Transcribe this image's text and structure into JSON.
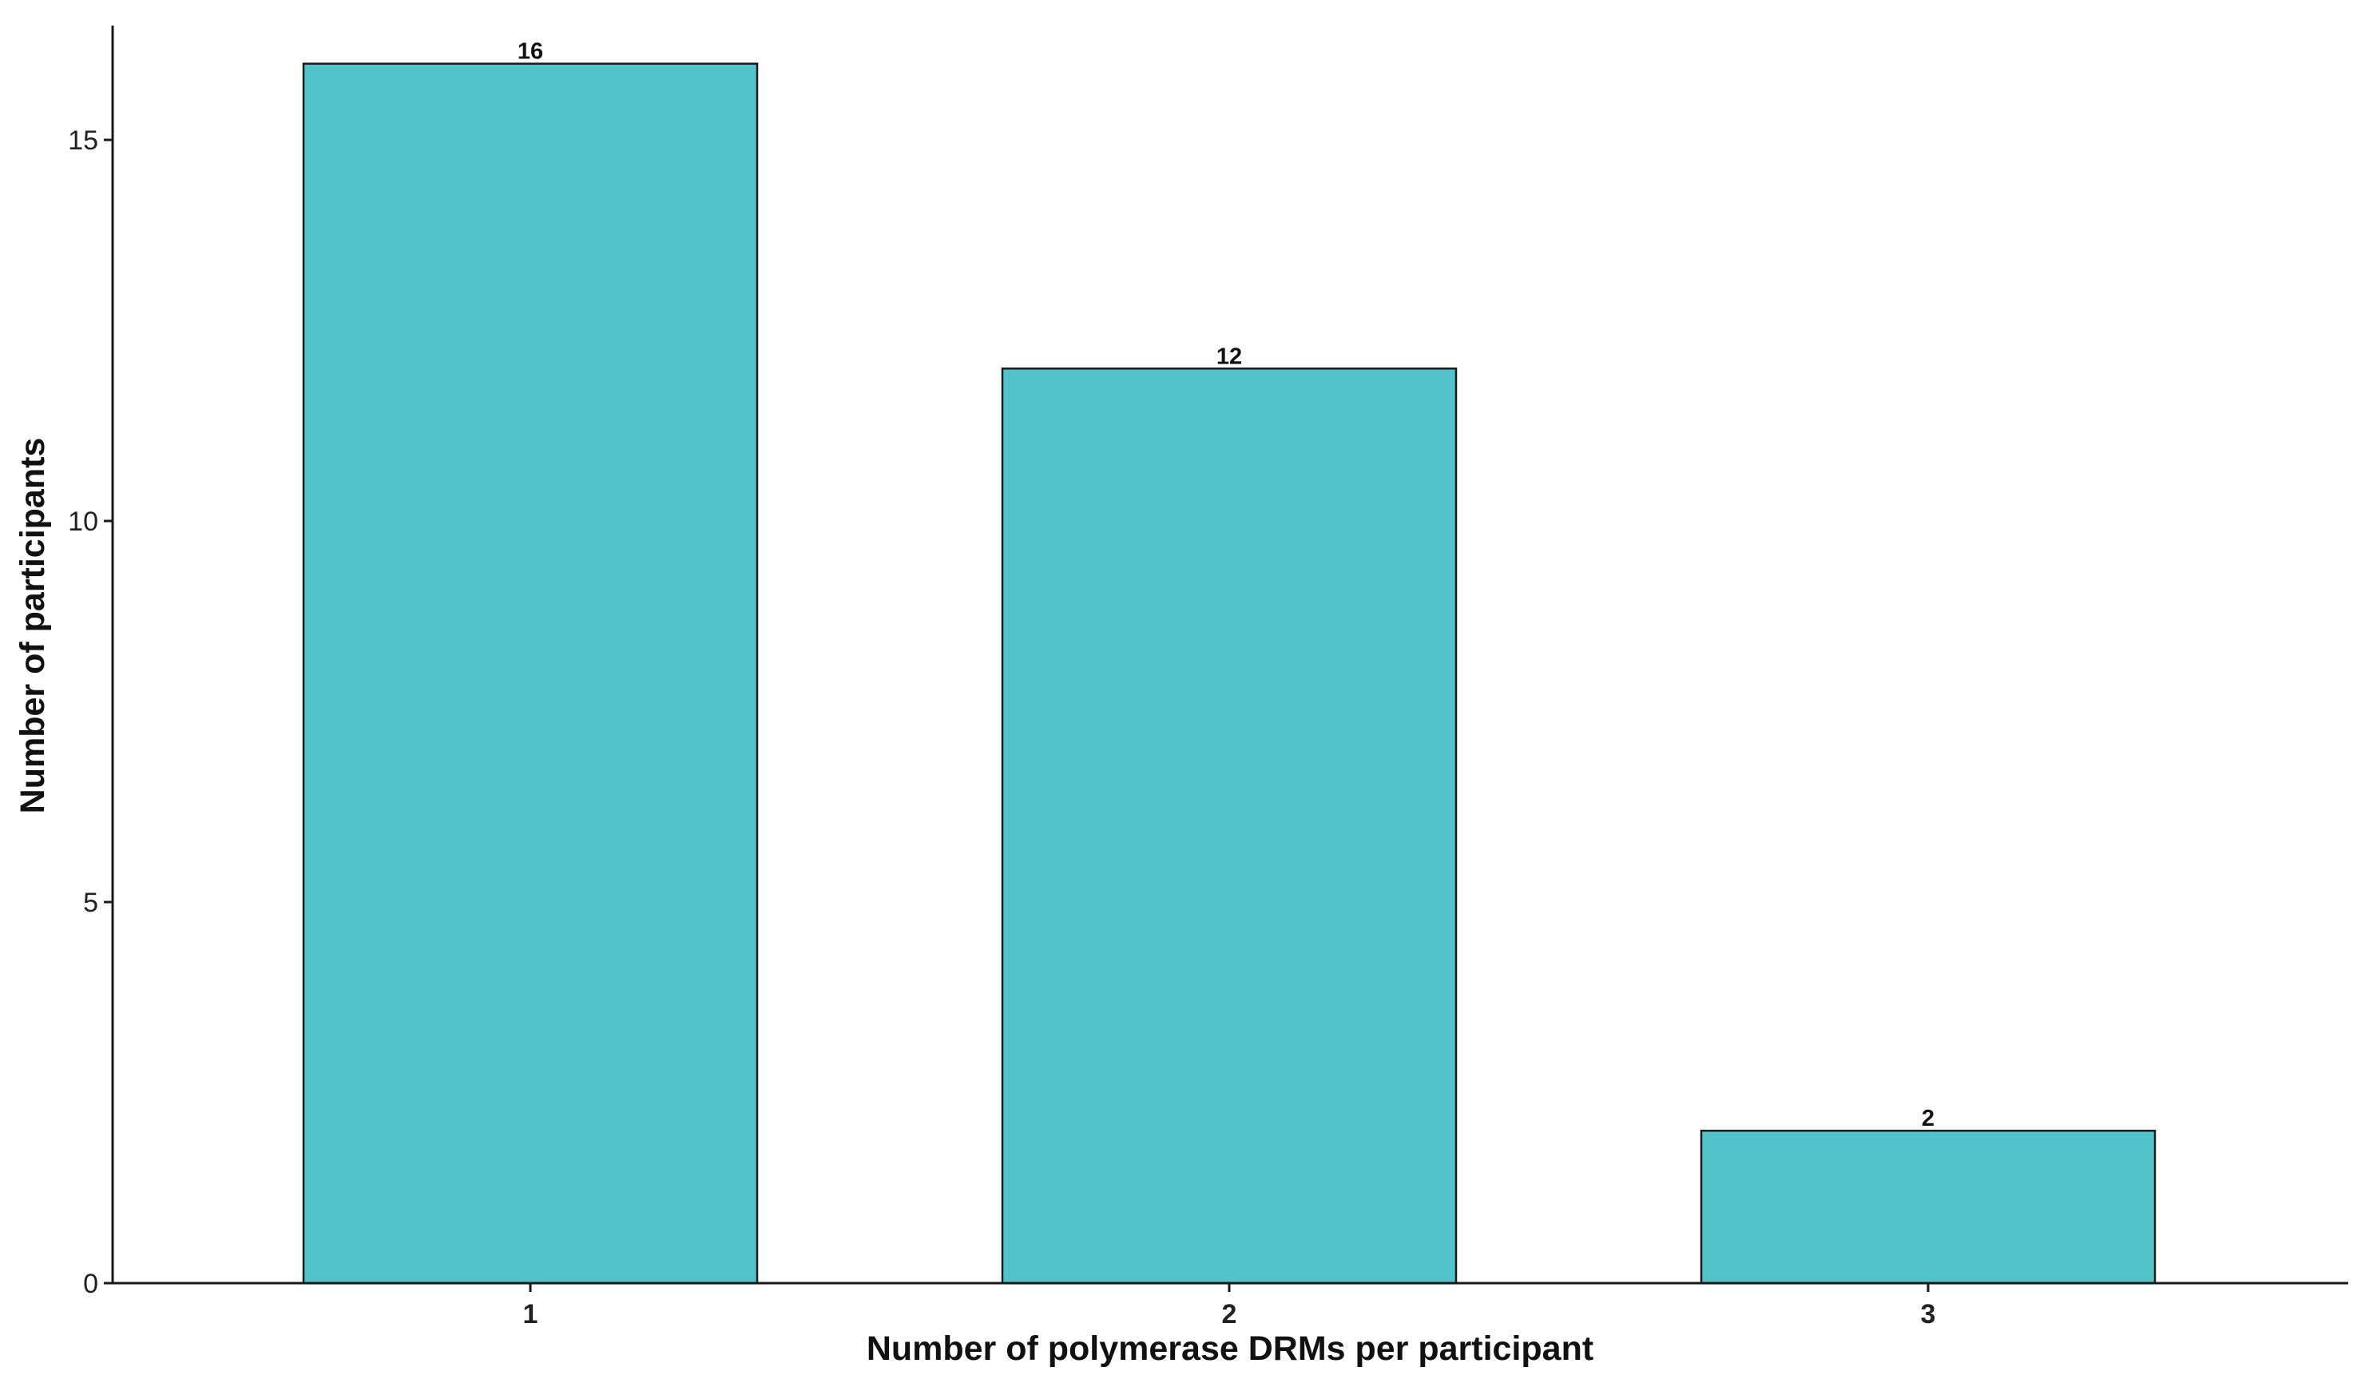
{
  "chart_data": {
    "type": "bar",
    "categories": [
      "1",
      "2",
      "3"
    ],
    "values": [
      16,
      12,
      2
    ],
    "data_labels": [
      "16",
      "12",
      "2"
    ],
    "xlabel": "Number of polymerase DRMs per participant",
    "ylabel": "Number of participants",
    "ylim": [
      0,
      16.5
    ],
    "yticks": [
      0,
      5,
      10,
      15
    ],
    "ytick_labels": [
      "0",
      "5",
      "10",
      "15"
    ],
    "grid": false,
    "legend": "none",
    "colors": {
      "bar_fill": "#52C3C9",
      "bar_stroke": "#1a1a1a",
      "axis": "#1a1a1a"
    }
  }
}
